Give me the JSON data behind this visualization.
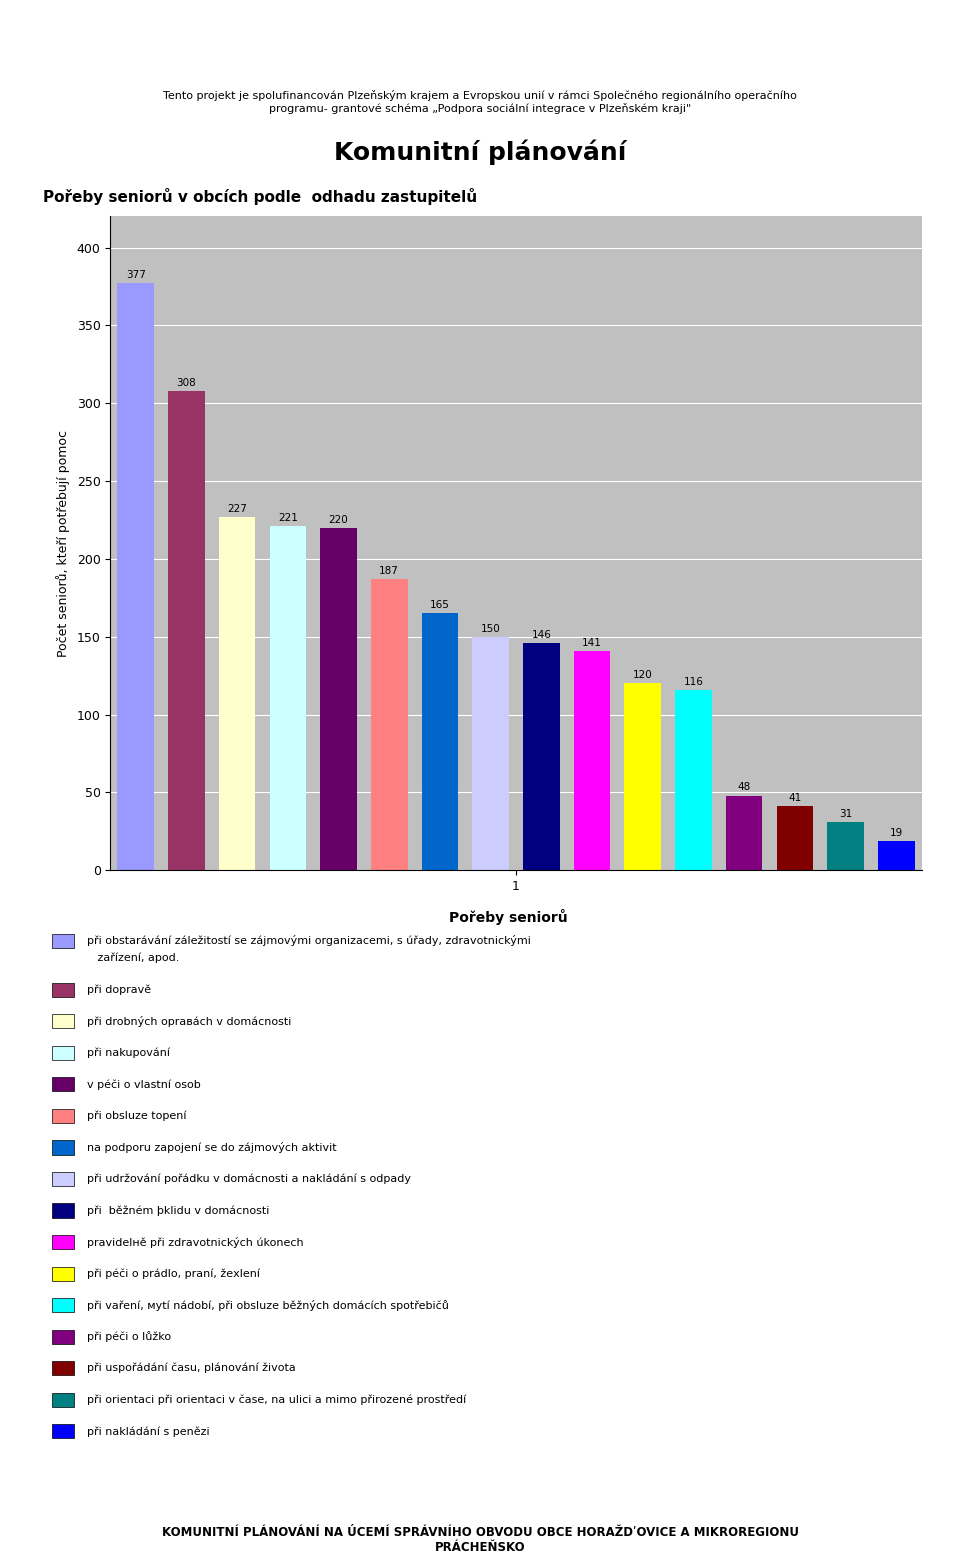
{
  "values": [
    377,
    308,
    227,
    221,
    220,
    187,
    165,
    150,
    146,
    141,
    120,
    116,
    48,
    41,
    31,
    19
  ],
  "bar_colors": [
    "#9999FF",
    "#993366",
    "#FFFFCC",
    "#CCFFFF",
    "#660066",
    "#FF8080",
    "#0066CC",
    "#CCCCFF",
    "#000080",
    "#FF00FF",
    "#FFFF00",
    "#00FFFF",
    "#800080",
    "#800000",
    "#008080",
    "#0000FF"
  ],
  "ylabel": "Počet seniorů, kteří potřebují pomoc",
  "xlabel": "Pořeby seniorů",
  "xlabel_tick": "1",
  "chart_title": "Pořeby seniorů v obcích podle  odhadu zastupitelů",
  "ylim": [
    0,
    420
  ],
  "yticks": [
    0,
    50,
    100,
    150,
    200,
    250,
    300,
    350,
    400
  ],
  "background_color": "#C0C0C0",
  "plot_bg_color": "#C0C0C0",
  "outer_bg_color": "#FFFFFF",
  "inner_bg_color": "#FFFFFF",
  "legend_entries": [
    {
      "color": "#9999FF",
      "label": "při obstarávání záležitostí se zájmovými organizacemi, s úřady, zdravotnickými\n   zařízení, apod."
    },
    {
      "color": "#993366",
      "label": "při dopravě"
    },
    {
      "color": "#FFFFCC",
      "label": "při drobných oprавách v domácnosti"
    },
    {
      "color": "#CCFFFF",
      "label": "při nakupování"
    },
    {
      "color": "#660066",
      "label": "v péči o vlastní osob"
    },
    {
      "color": "#FF8080",
      "label": "při obsluze topení"
    },
    {
      "color": "#0066CC",
      "label": "na podporu zapojení se do zájmových aktivit"
    },
    {
      "color": "#CCCCFF",
      "label": "při udržování pořádku v domácnosti a nakládání s odpady"
    },
    {
      "color": "#000080",
      "label": "při  běžném þklidu v domácnosti"
    },
    {
      "color": "#FF00FF",
      "label": "pravidelнě při zdravotnických úkonech"
    },
    {
      "color": "#FFFF00",
      "label": "při péči o prádlo, praní, žeхlení"
    },
    {
      "color": "#00FFFF",
      "label": "při vaření, мytí nádobí, při obsluze běžných domácích spotřebičů"
    },
    {
      "color": "#800080",
      "label": "při péči o lůžko"
    },
    {
      "color": "#800000",
      "label": "při uspořádání času, plánování života"
    },
    {
      "color": "#008080",
      "label": "při orientaci při orientaci v čase, na ulici a mimo přirozené prostředí"
    },
    {
      "color": "#0000FF",
      "label": "při nakládání s penězi"
    }
  ],
  "top_title": "Komunitní plánování",
  "subtitle": "Pořeby seniorů v obcích podle  odhadu zastupitelů",
  "bottom_text": "KOMUNITNÍ PLÁNOVÁNÍ NA ÚCEMÍ SPRÁVNÍHO OBVODU OBCE HORAŽDʹOVICE A MIKROREGIONU\nPRÁCHEŇSKO",
  "header_text": "Tento projekt je spolufinancován Plzeňským krajem a Evropskou unií v rámci Společného regionálního operačního\nprogramu- grantové schéma „Podpora sociální integrace v Plzeňském kraji\""
}
